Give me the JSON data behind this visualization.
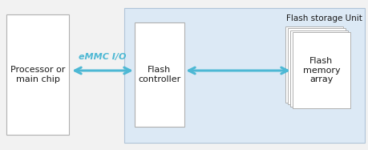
{
  "bg_color": "#f2f2f2",
  "white": "#ffffff",
  "arrow_color": "#4db8d4",
  "text_color": "#1a1a1a",
  "flash_unit_bg": "#dce9f5",
  "flash_unit_label": "Flash storage Unit",
  "processor_label": "Processor or\nmain chip",
  "emmc_io_label": "eMMC I/O",
  "flash_ctrl_label": "Flash\ncontroller",
  "flash_mem_label": "Flash\nmemory\narray",
  "figsize": [
    4.6,
    1.87
  ],
  "dpi": 100
}
